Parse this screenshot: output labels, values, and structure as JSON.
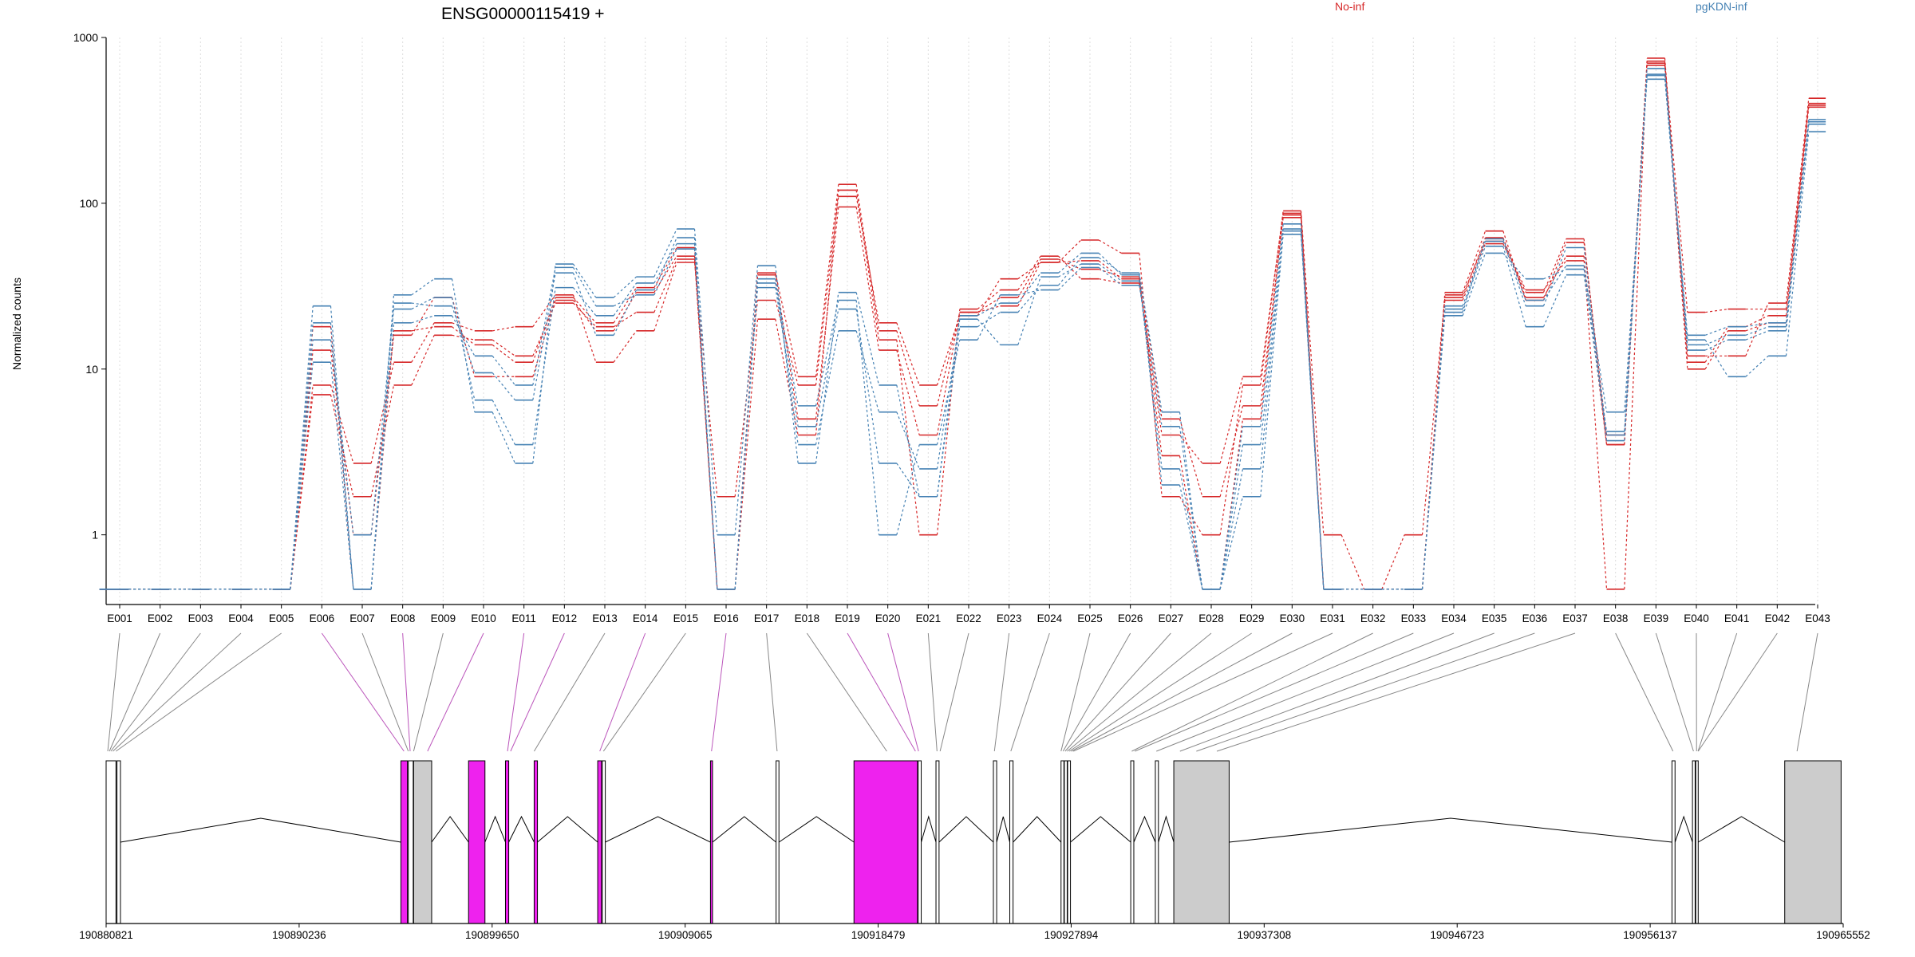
{
  "title": "ENSG00000115419 +",
  "ylabel": "Normalized counts",
  "colors": {
    "No-inf": "#d62728",
    "pgKDN-inf": "#4682b4",
    "highlight": "#ee22ee",
    "utr": "#cccccc",
    "axis": "#000000",
    "connector": "#888888"
  },
  "chart_data": {
    "type": "line",
    "title": "ENSG00000115419 +",
    "ylabel": "Normalized counts",
    "xlabel": "",
    "yscale": "log",
    "ylim": [
      0.38,
      1000
    ],
    "yticks": [
      1,
      10,
      100,
      1000
    ],
    "ytick_labels": [
      "1",
      "10",
      "100",
      "1000"
    ],
    "grid": "vertical dotted",
    "legend": [
      "No-inf",
      "pgKDN-inf"
    ],
    "legend_placement": "top",
    "categories": [
      "E001",
      "E002",
      "E003",
      "E004",
      "E005",
      "E006",
      "E007",
      "E008",
      "E009",
      "E010",
      "E011",
      "E012",
      "E013",
      "E014",
      "E015",
      "E016",
      "E017",
      "E018",
      "E019",
      "E020",
      "E021",
      "E022",
      "E023",
      "E024",
      "E025",
      "E026",
      "E027",
      "E028",
      "E029",
      "E030",
      "E031",
      "E032",
      "E033",
      "E034",
      "E035",
      "E036",
      "E037",
      "E038",
      "E039",
      "E040",
      "E041",
      "E042",
      "E043"
    ],
    "series": [
      {
        "name": "No-inf",
        "values": [
          0.47,
          0.47,
          0.47,
          0.47,
          0.47,
          7.0,
          1.7,
          8.0,
          16.0,
          15.0,
          12.0,
          25.0,
          18.0,
          22.0,
          46.0,
          0.47,
          37.0,
          5.0,
          95.0,
          13.0,
          4.0,
          22.0,
          27.0,
          46.0,
          40.0,
          36.0,
          5.0,
          1.7,
          6.0,
          82.0,
          0.47,
          0.47,
          0.47,
          28.0,
          59.0,
          30.0,
          45.0,
          3.5,
          680.0,
          10.0,
          17.0,
          19.0,
          380.0
        ]
      },
      {
        "name": "No-inf",
        "values": [
          0.47,
          0.47,
          0.47,
          0.47,
          0.47,
          8.0,
          2.7,
          11.0,
          19.0,
          17.0,
          18.0,
          28.0,
          11.0,
          17.0,
          44.0,
          1.7,
          26.0,
          8.0,
          110.0,
          19.0,
          8.0,
          21.0,
          35.0,
          44.0,
          60.0,
          50.0,
          1.7,
          1.0,
          8.0,
          90.0,
          1.0,
          0.47,
          1.0,
          27.0,
          62.0,
          27.0,
          48.0,
          0.47,
          750.0,
          12.0,
          12.0,
          25.0,
          430.0
        ]
      },
      {
        "name": "No-inf",
        "values": [
          0.47,
          0.47,
          0.47,
          0.47,
          0.47,
          13.0,
          1.0,
          16.0,
          27.0,
          9.0,
          9.0,
          26.0,
          17.0,
          29.0,
          48.0,
          0.47,
          20.0,
          4.0,
          120.0,
          15.0,
          1.0,
          23.0,
          30.0,
          48.0,
          35.0,
          33.0,
          4.0,
          2.7,
          9.0,
          87.0,
          0.47,
          0.47,
          0.47,
          29.0,
          68.0,
          26.0,
          58.0,
          4.0,
          720.0,
          11.0,
          18.0,
          21.0,
          400.0
        ]
      },
      {
        "name": "No-inf",
        "values": [
          0.47,
          0.47,
          0.47,
          0.47,
          0.47,
          18.0,
          0.47,
          17.0,
          18.0,
          14.0,
          11.0,
          27.0,
          19.0,
          31.0,
          54.0,
          0.47,
          38.0,
          9.0,
          130.0,
          17.0,
          6.0,
          22.0,
          24.0,
          44.0,
          45.0,
          35.0,
          3.0,
          0.47,
          5.0,
          85.0,
          0.47,
          0.47,
          0.47,
          26.0,
          57.0,
          29.0,
          61.0,
          3.5,
          700.0,
          22.0,
          23.0,
          23.0,
          390.0
        ]
      },
      {
        "name": "pgKDN-inf",
        "values": [
          0.47,
          0.47,
          0.47,
          0.47,
          0.47,
          24.0,
          0.47,
          28.0,
          35.0,
          5.5,
          2.7,
          43.0,
          27.0,
          36.0,
          70.0,
          1.0,
          42.0,
          2.7,
          29.0,
          8.0,
          1.7,
          18.0,
          22.0,
          32.0,
          47.0,
          38.0,
          5.5,
          0.47,
          1.7,
          65.0,
          0.47,
          0.47,
          0.47,
          21.0,
          50.0,
          35.0,
          40.0,
          5.5,
          560.0,
          15.0,
          9.0,
          12.0,
          270.0
        ]
      },
      {
        "name": "pgKDN-inf",
        "values": [
          0.47,
          0.47,
          0.47,
          0.47,
          0.47,
          15.0,
          1.0,
          23.0,
          27.0,
          6.5,
          3.5,
          31.0,
          21.0,
          33.0,
          57.0,
          0.47,
          35.0,
          3.5,
          17.0,
          5.5,
          2.5,
          20.0,
          14.0,
          36.0,
          43.0,
          34.0,
          2.5,
          0.47,
          2.5,
          70.0,
          0.47,
          0.47,
          0.47,
          23.0,
          55.0,
          18.0,
          37.0,
          4.0,
          600.0,
          13.0,
          15.0,
          17.0,
          300.0
        ]
      },
      {
        "name": "pgKDN-inf",
        "values": [
          0.47,
          0.47,
          0.47,
          0.47,
          0.47,
          19.0,
          0.47,
          25.0,
          24.0,
          9.5,
          6.5,
          38.0,
          16.0,
          30.0,
          62.0,
          0.47,
          31.0,
          4.5,
          23.0,
          2.7,
          1.7,
          21.0,
          25.0,
          38.0,
          50.0,
          37.0,
          2.0,
          0.47,
          4.5,
          75.0,
          0.47,
          0.47,
          0.47,
          24.0,
          59.0,
          24.0,
          54.0,
          3.7,
          650.0,
          14.0,
          16.0,
          18.0,
          320.0
        ]
      },
      {
        "name": "pgKDN-inf",
        "values": [
          0.47,
          0.47,
          0.47,
          0.47,
          0.47,
          11.0,
          0.47,
          19.0,
          21.0,
          12.0,
          8.0,
          41.0,
          24.0,
          28.0,
          53.0,
          0.47,
          33.0,
          6.0,
          26.0,
          1.0,
          3.5,
          15.0,
          28.0,
          30.0,
          41.0,
          32.0,
          4.5,
          0.47,
          3.5,
          68.0,
          0.47,
          0.47,
          0.47,
          22.0,
          61.0,
          26.0,
          42.0,
          4.2,
          590.0,
          16.0,
          18.0,
          19.0,
          310.0
        ]
      }
    ],
    "genomic_axis": {
      "tick_labels": [
        "190880821",
        "190890236",
        "190899650",
        "190909065",
        "190918479",
        "190927894",
        "190937308",
        "190946723",
        "190956137",
        "190965552"
      ],
      "range": [
        190880821,
        190965552
      ]
    },
    "gene_model": {
      "exons": [
        {
          "start": 190880821,
          "end": 190881300,
          "type": "exon"
        },
        {
          "start": 190881350,
          "end": 190881520,
          "type": "exon"
        },
        {
          "start": 190895200,
          "end": 190895520,
          "type": "highlight"
        },
        {
          "start": 190895560,
          "end": 190895800,
          "type": "exon"
        },
        {
          "start": 190895820,
          "end": 190896700,
          "type": "utr"
        },
        {
          "start": 190898500,
          "end": 190899300,
          "type": "highlight"
        },
        {
          "start": 190900300,
          "end": 190900460,
          "type": "highlight"
        },
        {
          "start": 190901700,
          "end": 190901860,
          "type": "highlight"
        },
        {
          "start": 190904800,
          "end": 190904990,
          "type": "highlight"
        },
        {
          "start": 190905020,
          "end": 190905170,
          "type": "exon"
        },
        {
          "start": 190910300,
          "end": 190910400,
          "type": "highlight"
        },
        {
          "start": 190913500,
          "end": 190913640,
          "type": "exon"
        },
        {
          "start": 190917300,
          "end": 190920400,
          "type": "highlight"
        },
        {
          "start": 190920430,
          "end": 190920580,
          "type": "exon"
        },
        {
          "start": 190921300,
          "end": 190921450,
          "type": "exon"
        },
        {
          "start": 190924100,
          "end": 190924260,
          "type": "exon"
        },
        {
          "start": 190924900,
          "end": 190925060,
          "type": "exon"
        },
        {
          "start": 190927400,
          "end": 190927540,
          "type": "exon"
        },
        {
          "start": 190927560,
          "end": 190927700,
          "type": "exon"
        },
        {
          "start": 190927720,
          "end": 190927860,
          "type": "exon"
        },
        {
          "start": 190930800,
          "end": 190930950,
          "type": "exon"
        },
        {
          "start": 190932000,
          "end": 190932150,
          "type": "exon"
        },
        {
          "start": 190932900,
          "end": 190935600,
          "type": "utr"
        },
        {
          "start": 190957200,
          "end": 190957350,
          "type": "exon"
        },
        {
          "start": 190958200,
          "end": 190958330,
          "type": "exon"
        },
        {
          "start": 190958360,
          "end": 190958480,
          "type": "exon"
        },
        {
          "start": 190962700,
          "end": 190965450,
          "type": "utr"
        }
      ],
      "links": [
        {
          "exon": "E001",
          "pos": 190880900
        },
        {
          "exon": "E002",
          "pos": 190880980
        },
        {
          "exon": "E003",
          "pos": 190881050
        },
        {
          "exon": "E004",
          "pos": 190881150
        },
        {
          "exon": "E005",
          "pos": 190881300
        },
        {
          "exon": "E006",
          "pos": 190895350
        },
        {
          "exon": "E007",
          "pos": 190895560
        },
        {
          "exon": "E008",
          "pos": 190895650
        },
        {
          "exon": "E009",
          "pos": 190895820
        },
        {
          "exon": "E010",
          "pos": 190896500
        },
        {
          "exon": "E011",
          "pos": 190900400
        },
        {
          "exon": "E012",
          "pos": 190900550
        },
        {
          "exon": "E013",
          "pos": 190901700
        },
        {
          "exon": "E014",
          "pos": 190904900
        },
        {
          "exon": "E015",
          "pos": 190905080
        },
        {
          "exon": "E016",
          "pos": 190910350
        },
        {
          "exon": "E017",
          "pos": 190913550
        },
        {
          "exon": "E018",
          "pos": 190918900
        },
        {
          "exon": "E019",
          "pos": 190920300
        },
        {
          "exon": "E020",
          "pos": 190920450
        },
        {
          "exon": "E021",
          "pos": 190921350
        },
        {
          "exon": "E022",
          "pos": 190921500
        },
        {
          "exon": "E023",
          "pos": 190924150
        },
        {
          "exon": "E024",
          "pos": 190924950
        },
        {
          "exon": "E025",
          "pos": 190927400
        },
        {
          "exon": "E026",
          "pos": 190927500
        },
        {
          "exon": "E027",
          "pos": 190927600
        },
        {
          "exon": "E028",
          "pos": 190927700
        },
        {
          "exon": "E029",
          "pos": 190927800
        },
        {
          "exon": "E030",
          "pos": 190927900
        },
        {
          "exon": "E031",
          "pos": 190928000
        },
        {
          "exon": "E032",
          "pos": 190930850
        },
        {
          "exon": "E033",
          "pos": 190931000
        },
        {
          "exon": "E034",
          "pos": 190932050
        },
        {
          "exon": "E035",
          "pos": 190933200
        },
        {
          "exon": "E036",
          "pos": 190934000
        },
        {
          "exon": "E037",
          "pos": 190935000
        },
        {
          "exon": "E038",
          "pos": 190957250
        },
        {
          "exon": "E039",
          "pos": 190958250
        },
        {
          "exon": "E040",
          "pos": 190958400
        },
        {
          "exon": "E041",
          "pos": 190958470
        },
        {
          "exon": "E042",
          "pos": 190958480
        },
        {
          "exon": "E043",
          "pos": 190963300
        }
      ],
      "highlighted_exons": [
        "E006",
        "E008",
        "E010",
        "E011",
        "E012",
        "E014",
        "E016",
        "E019",
        "E020"
      ]
    }
  }
}
